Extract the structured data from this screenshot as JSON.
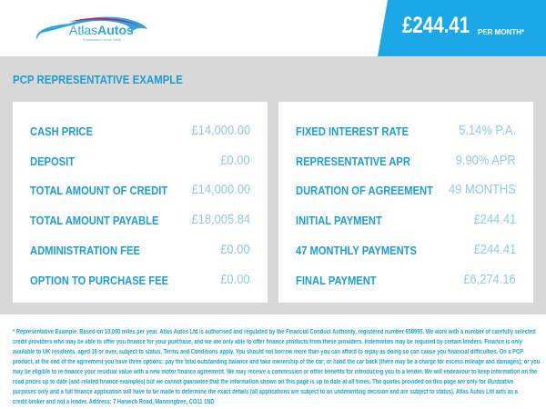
{
  "header": {
    "logo_text": "AtlasAutos",
    "logo_tagline": "Established Since 1986",
    "price": "£244.41",
    "price_suffix": "PER MONTH*"
  },
  "section_title": "PCP REPRESENTATIVE EXAMPLE",
  "left_rows": [
    {
      "label": "CASH PRICE",
      "value": "£14,000.00"
    },
    {
      "label": "DEPOSIT",
      "value": "£0.00"
    },
    {
      "label": "TOTAL AMOUNT OF CREDIT",
      "value": "£14,000.00"
    },
    {
      "label": "TOTAL AMOUNT PAYABLE",
      "value": "£18,005.84"
    },
    {
      "label": "ADMINISTRATION FEE",
      "value": "£0.00"
    },
    {
      "label": "OPTION TO PURCHASE FEE",
      "value": "£0.00"
    }
  ],
  "right_rows": [
    {
      "label": "FIXED INTEREST RATE",
      "value": "5.14% P.A."
    },
    {
      "label": "REPRESENTATIVE APR",
      "value": "9.90% APR"
    },
    {
      "label": "DURATION OF AGREEMENT",
      "value": "49 MONTHS"
    },
    {
      "label": "INITIAL PAYMENT",
      "value": "£244.41"
    },
    {
      "label": "47 MONTHLY PAYMENTS",
      "value": "£244.41"
    },
    {
      "label": "FINAL PAYMENT",
      "value": "£6,274.16"
    }
  ],
  "disclaimer_lines": [
    "* Representative Example. Based on 10,000 miles per year. Atlas Autos Ltd is authorised and regulated by the Financial Conduct Authority, registered number 658995. We work with a number of carefully selected",
    "credit providers who may be able to offer you finance for your purchase, and we are only able to offer finance products from these providers. Indemnities may be required by certain lenders. Finance is only",
    "available to UK residents, aged 18 or over, subject to status. Terms and Conditions apply. You should not borrow more than you can afford to repay as doing so can cause you financial difficulties. On a PCP",
    "product, at the end of the agreement you have three options: pay the total outstanding balance and take ownership of the car; or hand the car back (there may be a charge for excess mileage and damages); or you",
    "may be eligible to re-finance your residual value with a new motor finance agreement. We may receive a commission or other benefits for introducing you to a lender. We will endeavour to keep information on the",
    "road prices up to date (and related finance examples) but we cannot guarantee that the information shown on this page is up to date at all times. The quotes provided on this page are only for illustrative",
    "purposes only and a full finance application will have to be made to determine the exact details (all applications are subject to an underwriting decision and are subject to status). Atlas Autos Ltd acts as a",
    "credit broker and not a lender. Address: 7 Harwich Road, Manningtree, CO11 1ND"
  ],
  "colors": {
    "accent": "#1aa8e6",
    "label": "#1d9dd0",
    "value": "#8fcbe2",
    "background": "#d8d8d8"
  }
}
